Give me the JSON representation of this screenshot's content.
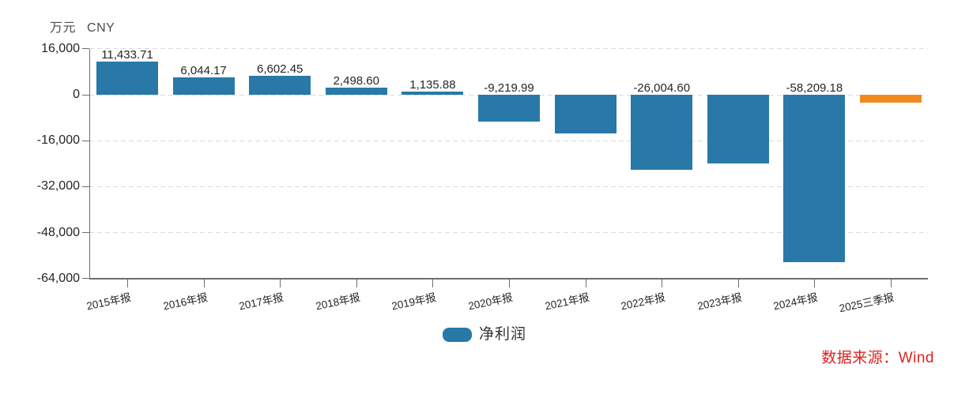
{
  "chart_data": {
    "type": "bar",
    "unit_label": "万元",
    "currency_label": "CNY",
    "categories": [
      "2015年报",
      "2016年报",
      "2017年报",
      "2018年报",
      "2019年报",
      "2020年报",
      "2021年报",
      "2022年报",
      "2023年报",
      "2024年报",
      "2025三季报"
    ],
    "series": [
      {
        "name": "净利润",
        "values": [
          11433.71,
          6044.17,
          6602.45,
          2498.6,
          1135.88,
          -9219.99,
          -13550,
          -26004.6,
          -24000,
          -58209.18,
          -2700
        ],
        "data_labels": [
          "11,433.71",
          "6,044.17",
          "6,602.45",
          "2,498.60",
          "1,135.88",
          "-9,219.99",
          "",
          "-26,004.60",
          "",
          "-58,209.18",
          ""
        ],
        "point_colors": [
          "#2879a8",
          "#2879a8",
          "#2879a8",
          "#2879a8",
          "#2879a8",
          "#2879a8",
          "#2879a8",
          "#2879a8",
          "#2879a8",
          "#2879a8",
          "#f18a1e"
        ]
      }
    ],
    "y_axis": {
      "tick_values": [
        16000,
        0,
        -16000,
        -32000,
        -48000,
        -64000
      ],
      "tick_labels": [
        "16,000",
        "0",
        "-16,000",
        "-32,000",
        "-48,000",
        "-64,000"
      ],
      "ylim": [
        -64000,
        16000
      ]
    },
    "legend": {
      "position": "bottom-center",
      "items": [
        {
          "label": "净利润",
          "color": "#2879a8"
        }
      ]
    },
    "grid": {
      "horizontal_dashed": true
    }
  },
  "footer": {
    "source": "数据来源：Wind"
  },
  "colors": {
    "bar_blue": "#2879a8",
    "bar_orange": "#f18a1e",
    "source_red": "#de231f",
    "axis_gray": "#6e6e6e",
    "grid_gray": "#d9d9d9"
  }
}
